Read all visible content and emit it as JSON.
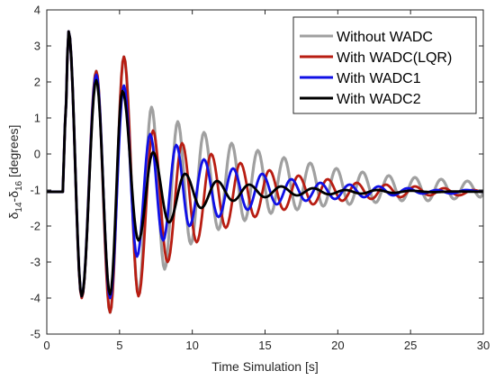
{
  "chart_data": {
    "type": "line",
    "title": "",
    "xlabel": "Time Simulation [s]",
    "ylabel": {
      "d1": "δ",
      "s1": "14",
      "sep": "-δ",
      "s2": "16",
      "unit": " [degrees]"
    },
    "xlim": [
      0,
      30
    ],
    "ylim": [
      -5,
      4
    ],
    "xticks": [
      "0",
      "5",
      "10",
      "15",
      "20",
      "25",
      "30"
    ],
    "yticks": [
      "4",
      "3",
      "2",
      "1",
      "0",
      "-1",
      "-2",
      "-3",
      "-4",
      "-5"
    ],
    "grid": false,
    "legend_position": "top-right",
    "series": [
      {
        "name": "Without WADC",
        "color": "#a0a0a0",
        "x": [
          0,
          1.1,
          1.25,
          1.5,
          2.4,
          3.4,
          4.35,
          5.3,
          6.3,
          7.2,
          8.1,
          9.0,
          9.9,
          10.8,
          11.8,
          12.7,
          13.6,
          14.5,
          15.4,
          16.3,
          17.2,
          18.1,
          19.0,
          19.9,
          20.8,
          21.7,
          22.6,
          23.5,
          24.4,
          25.3,
          26.2,
          27.1,
          28.0,
          28.9,
          29.8,
          30
        ],
        "y": [
          -1.05,
          -1.05,
          0.8,
          3.4,
          -3.95,
          2.3,
          -4.4,
          2.7,
          -3.9,
          1.3,
          -3.2,
          0.9,
          -2.5,
          0.6,
          -2.1,
          0.3,
          -1.85,
          0.1,
          -1.65,
          -0.1,
          -1.55,
          -0.25,
          -1.45,
          -0.4,
          -1.4,
          -0.5,
          -1.35,
          -0.6,
          -1.3,
          -0.65,
          -1.3,
          -0.7,
          -1.25,
          -0.75,
          -1.2,
          -1.1
        ]
      },
      {
        "name": "With WADC(LQR)",
        "color": "#b81d12",
        "x": [
          0,
          1.1,
          1.25,
          1.5,
          2.4,
          3.4,
          4.35,
          5.3,
          6.3,
          7.3,
          8.3,
          9.3,
          10.3,
          11.3,
          12.3,
          13.3,
          14.3,
          15.3,
          16.3,
          17.3,
          18.3,
          19.3,
          20.3,
          21.3,
          22.3,
          23.3,
          24.3,
          25.3,
          26.3,
          27.3,
          28.3,
          29.3,
          30
        ],
        "y": [
          -1.05,
          -1.05,
          0.8,
          3.4,
          -4.0,
          2.3,
          -4.4,
          2.7,
          -3.95,
          0.65,
          -3.0,
          0.3,
          -2.45,
          0.0,
          -2.05,
          -0.25,
          -1.75,
          -0.45,
          -1.55,
          -0.6,
          -1.4,
          -0.7,
          -1.3,
          -0.8,
          -1.25,
          -0.85,
          -1.2,
          -0.9,
          -1.15,
          -0.95,
          -1.15,
          -1.0,
          -1.05
        ]
      },
      {
        "name": "With WADC1",
        "color": "#1010e6",
        "x": [
          0,
          1.1,
          1.25,
          1.5,
          2.4,
          3.4,
          4.35,
          5.3,
          6.2,
          7.1,
          8.0,
          8.9,
          9.8,
          10.8,
          11.8,
          12.8,
          13.8,
          14.8,
          15.8,
          16.8,
          17.8,
          18.8,
          19.8,
          20.8,
          21.8,
          22.8,
          23.8,
          24.8,
          25.8,
          26.8,
          27.8,
          28.8,
          30
        ],
        "y": [
          -1.05,
          -1.05,
          0.8,
          3.4,
          -3.95,
          2.2,
          -4.0,
          1.9,
          -2.85,
          0.55,
          -2.4,
          0.25,
          -2.0,
          -0.15,
          -1.75,
          -0.4,
          -1.55,
          -0.55,
          -1.4,
          -0.7,
          -1.3,
          -0.8,
          -1.25,
          -0.85,
          -1.2,
          -0.9,
          -1.15,
          -0.95,
          -1.1,
          -1.0,
          -1.1,
          -1.0,
          -1.05
        ]
      },
      {
        "name": "With WADC2",
        "color": "#000000",
        "x": [
          0,
          1.1,
          1.25,
          1.5,
          2.4,
          3.4,
          4.35,
          5.2,
          6.3,
          7.3,
          8.4,
          9.5,
          10.6,
          11.7,
          12.8,
          13.9,
          15.0,
          16.1,
          17.2,
          18.3,
          19.4,
          20.5,
          21.6,
          22.7,
          23.8,
          25,
          26.5,
          28,
          30
        ],
        "y": [
          -1.05,
          -1.05,
          0.8,
          3.4,
          -3.95,
          2.05,
          -3.9,
          1.75,
          -2.4,
          0.05,
          -1.9,
          -0.55,
          -1.5,
          -0.75,
          -1.3,
          -0.85,
          -1.2,
          -0.9,
          -1.15,
          -0.95,
          -1.12,
          -1.0,
          -1.1,
          -1.0,
          -1.08,
          -1.02,
          -1.06,
          -1.04,
          -1.05
        ]
      }
    ]
  }
}
